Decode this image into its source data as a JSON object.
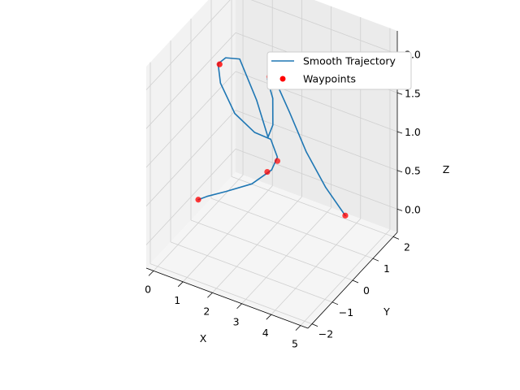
{
  "chart_data": {
    "type": "line3d",
    "xlabel": "X",
    "ylabel": "Y",
    "zlabel": "Z",
    "x_ticks": [
      "0",
      "1",
      "2",
      "3",
      "4",
      "5"
    ],
    "y_ticks": [
      "−2",
      "−1",
      "0",
      "1",
      "2"
    ],
    "z_ticks": [
      "0.0",
      "0.5",
      "1.0",
      "1.5",
      "2.0"
    ],
    "xlim": [
      -0.25,
      5.25
    ],
    "ylim": [
      -2.2,
      2.2
    ],
    "zlim": [
      -0.3,
      2.3
    ],
    "grid": true,
    "legend_position": "top-right",
    "series": [
      {
        "name": "Smooth Trajectory",
        "kind": "line",
        "color": "#1f77b4",
        "x": [
          0,
          0.18,
          0.6,
          1.2,
          1.7,
          2.0,
          2.05,
          1.85,
          1.45,
          1.1,
          0.95,
          1.0,
          1.2,
          1.5,
          1.75,
          1.95,
          2.05,
          2.0,
          2.3,
          2.9,
          3.6,
          4.3,
          5.0
        ],
        "y": [
          0,
          0.17,
          0.5,
          0.9,
          1.15,
          1.0,
          0.6,
          0.1,
          -0.3,
          -0.5,
          -0.4,
          -0.1,
          0.3,
          0.7,
          0.9,
          0.85,
          0.7,
          0.5,
          0.5,
          0.3,
          0.1,
          0.05,
          0.0
        ],
        "z": [
          0.0,
          0.02,
          0.05,
          0.12,
          0.3,
          0.55,
          0.9,
          1.1,
          1.4,
          1.8,
          2.0,
          2.0,
          1.9,
          1.3,
          0.8,
          1.0,
          1.4,
          1.7,
          1.7,
          1.45,
          1.1,
          0.75,
          0.5
        ]
      },
      {
        "name": "Waypoints",
        "kind": "scatter",
        "color": "#ff0000",
        "x": [
          0,
          2,
          2,
          1,
          2,
          5
        ],
        "y": [
          0,
          1,
          0.5,
          -0.4,
          0.6,
          0
        ],
        "z": [
          0,
          0.5,
          0.5,
          2,
          1.7,
          0.5
        ]
      }
    ]
  }
}
